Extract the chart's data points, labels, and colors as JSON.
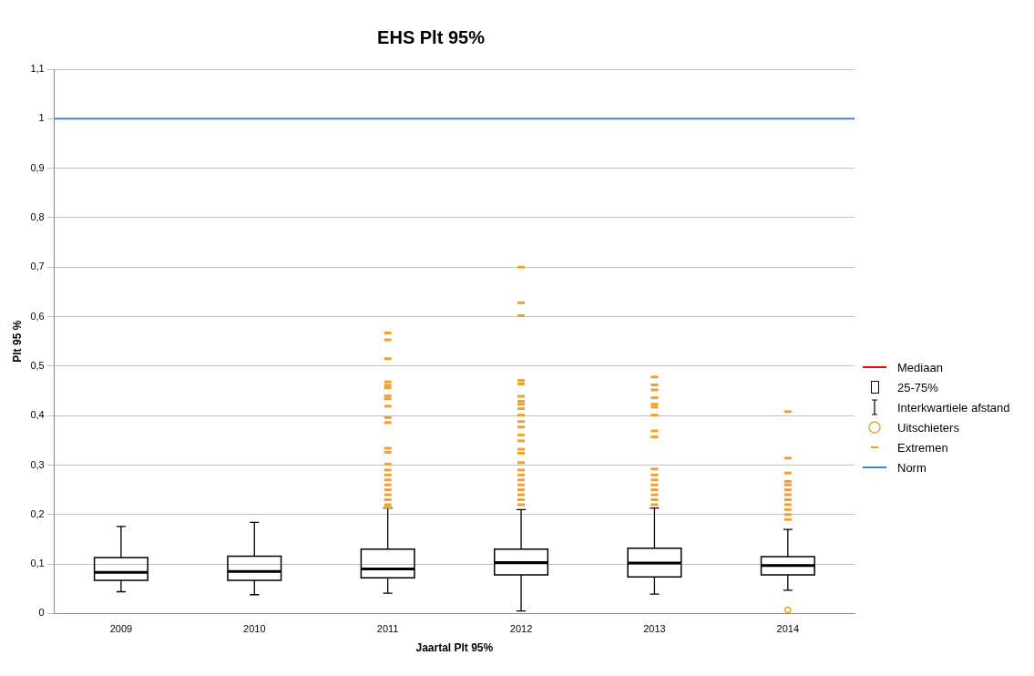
{
  "chart_data": {
    "type": "box",
    "title": "EHS Plt 95%",
    "xlabel": "Jaartal Plt 95%",
    "ylabel": "Plt 95 %",
    "categories": [
      "2009",
      "2010",
      "2011",
      "2012",
      "2013",
      "2014"
    ],
    "ylim": [
      0,
      1.1
    ],
    "yticks": [
      0,
      {
        "value": 0.1,
        "label": "0,1"
      },
      {
        "value": 0.2,
        "label": "0,2"
      },
      {
        "value": 0.3,
        "label": "0,3"
      },
      {
        "value": 0.4,
        "label": "0,4"
      },
      {
        "value": 0.5,
        "label": "0,5"
      },
      {
        "value": 0.6,
        "label": "0,6"
      },
      {
        "value": 0.7,
        "label": "0,7"
      },
      {
        "value": 0.8,
        "label": "0,8"
      },
      {
        "value": 0.9,
        "label": "0,9"
      },
      1,
      {
        "value": 1.1,
        "label": "1,1"
      }
    ],
    "grid": "y",
    "legend": "right",
    "annotations": [
      "Mediaan",
      "Interkwartiele afstand",
      "Uitschieters",
      "Extremen"
    ],
    "series": [
      {
        "name": "25-75%",
        "type": "box",
        "color": "#000000",
        "boxes": [
          {
            "low": 0.044,
            "q1": 0.067,
            "median": 0.083,
            "q3": 0.113,
            "high": 0.176
          },
          {
            "low": 0.038,
            "q1": 0.067,
            "median": 0.085,
            "q3": 0.116,
            "high": 0.184
          },
          {
            "low": 0.041,
            "q1": 0.072,
            "median": 0.09,
            "q3": 0.13,
            "high": 0.213,
            "outliers": [
              0.567,
              0.553,
              0.515,
              0.468,
              0.461,
              0.456,
              0.44,
              0.434,
              0.419,
              0.396,
              0.386,
              0.334,
              0.326,
              0.302,
              0.29,
              0.28,
              0.27,
              0.26,
              0.25,
              0.24,
              0.23,
              0.22,
              0.215
            ]
          },
          {
            "low": 0.005,
            "q1": 0.078,
            "median": 0.103,
            "q3": 0.13,
            "high": 0.21,
            "outliers": [
              0.7,
              0.628,
              0.602,
              0.471,
              0.464,
              0.439,
              0.429,
              0.423,
              0.414,
              0.401,
              0.388,
              0.377,
              0.361,
              0.349,
              0.332,
              0.324,
              0.305,
              0.29,
              0.28,
              0.27,
              0.26,
              0.25,
              0.24,
              0.23,
              0.22
            ]
          },
          {
            "low": 0.039,
            "q1": 0.074,
            "median": 0.102,
            "q3": 0.132,
            "high": 0.213,
            "outliers": [
              0.478,
              0.462,
              0.452,
              0.436,
              0.423,
              0.417,
              0.401,
              0.369,
              0.357,
              0.292,
              0.28,
              0.27,
              0.26,
              0.25,
              0.24,
              0.23,
              0.22
            ]
          },
          {
            "low": 0.047,
            "q1": 0.078,
            "median": 0.097,
            "q3": 0.115,
            "high": 0.17,
            "outliers": [
              0.007,
              0.408,
              0.314,
              0.284,
              0.267,
              0.26,
              0.25,
              0.24,
              0.23,
              0.22,
              0.21,
              0.2,
              0.19
            ]
          }
        ]
      }
    ],
    "ref_lines": [
      {
        "axis": "y",
        "value": 1,
        "label": "Norm",
        "color": "#4f81d0"
      }
    ]
  }
}
